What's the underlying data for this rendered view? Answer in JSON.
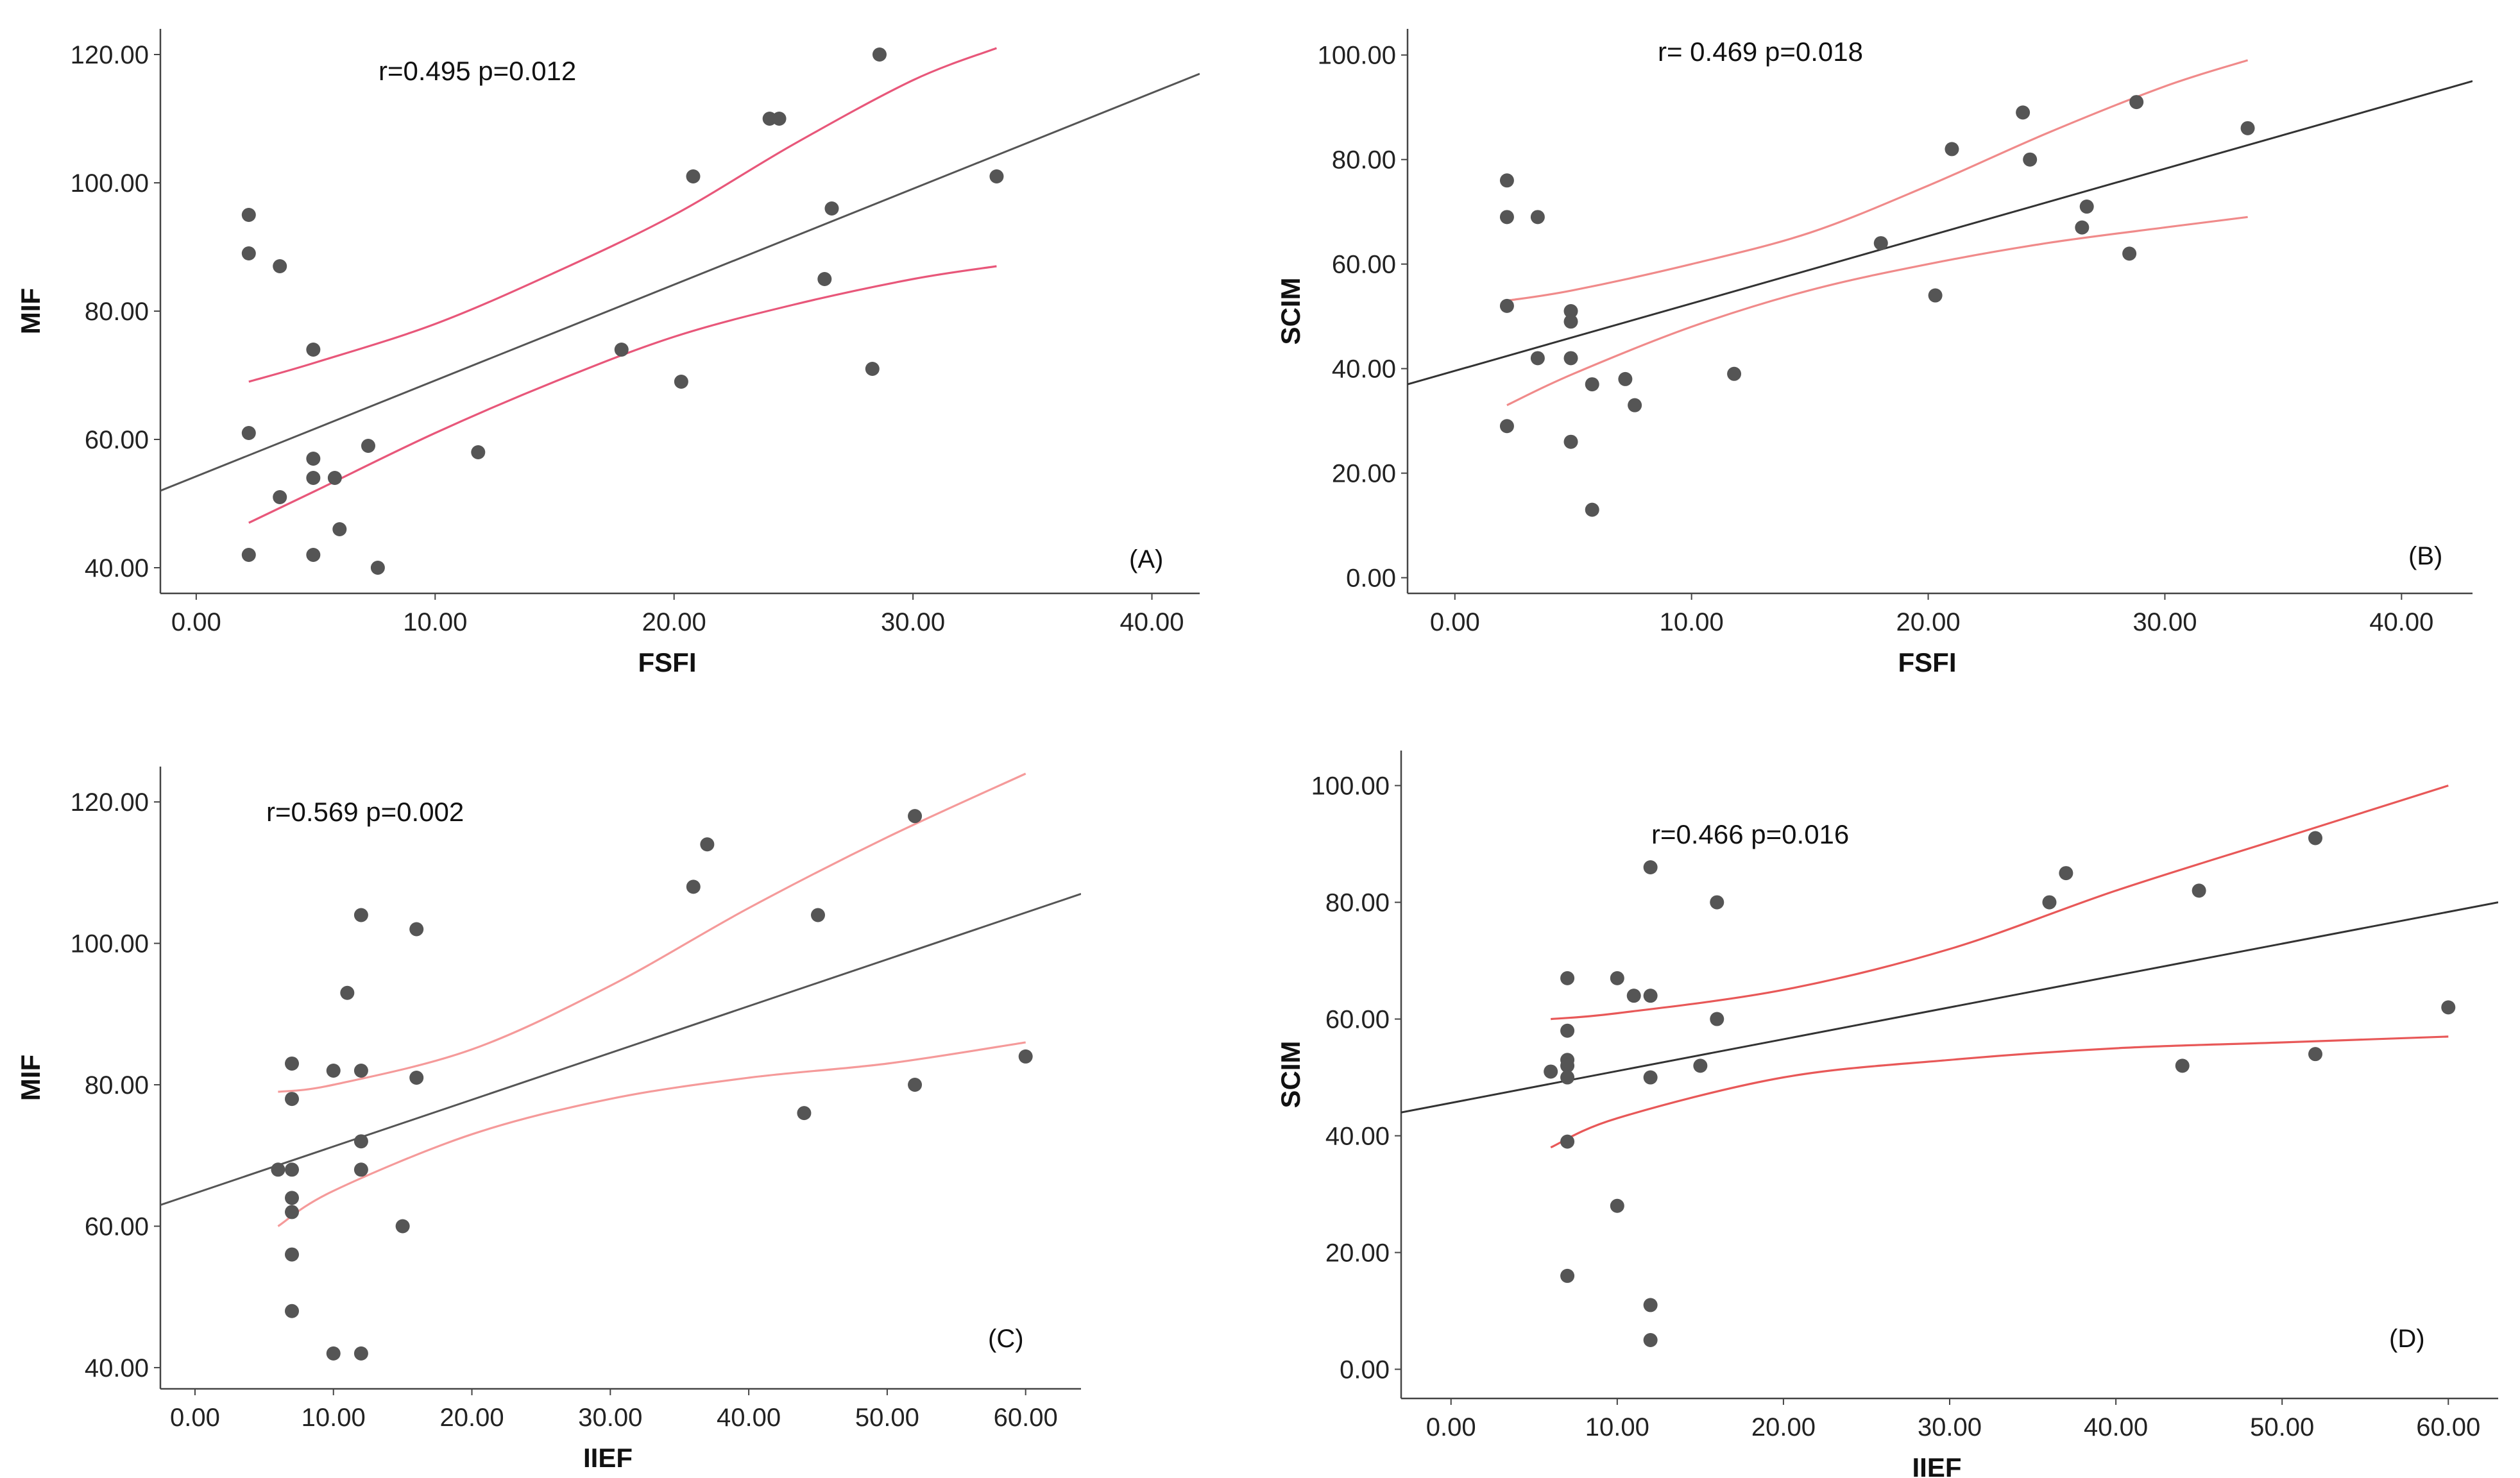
{
  "chart_data": [
    {
      "id": "A",
      "type": "scatter",
      "panel_label": "(A)",
      "annotation": "r=0.495 p=0.012",
      "xlabel": "FSFI",
      "ylabel": "MIF",
      "xlim": [
        -1.5,
        42
      ],
      "ylim": [
        36,
        124
      ],
      "xticks": [
        0,
        10,
        20,
        30,
        40
      ],
      "xtick_labels": [
        "0.00",
        "10.00",
        "20.00",
        "30.00",
        "40.00"
      ],
      "yticks": [
        40,
        60,
        80,
        100,
        120
      ],
      "ytick_labels": [
        "40.00",
        "60.00",
        "80.00",
        "100.00",
        "120.00"
      ],
      "points": [
        [
          2.2,
          95
        ],
        [
          2.2,
          89
        ],
        [
          2.2,
          61
        ],
        [
          2.2,
          42
        ],
        [
          3.5,
          87
        ],
        [
          3.5,
          51
        ],
        [
          4.9,
          74
        ],
        [
          4.9,
          57
        ],
        [
          4.9,
          54
        ],
        [
          4.9,
          42
        ],
        [
          5.8,
          54
        ],
        [
          6.0,
          46
        ],
        [
          7.2,
          59
        ],
        [
          7.6,
          40
        ],
        [
          11.8,
          58
        ],
        [
          17.8,
          74
        ],
        [
          20.3,
          69
        ],
        [
          20.8,
          101
        ],
        [
          24.0,
          110
        ],
        [
          24.4,
          110
        ],
        [
          26.3,
          85
        ],
        [
          26.6,
          96
        ],
        [
          28.3,
          71
        ],
        [
          28.6,
          120
        ],
        [
          33.5,
          101
        ]
      ],
      "fit_line": [
        [
          -1.5,
          52
        ],
        [
          42,
          117
        ]
      ],
      "ci_upper": [
        [
          2.2,
          69
        ],
        [
          5,
          72
        ],
        [
          10,
          78
        ],
        [
          15,
          86
        ],
        [
          20,
          95
        ],
        [
          25,
          106
        ],
        [
          30,
          116
        ],
        [
          33.5,
          121
        ]
      ],
      "ci_lower": [
        [
          2.2,
          47
        ],
        [
          5,
          52
        ],
        [
          10,
          61
        ],
        [
          15,
          69
        ],
        [
          20,
          76
        ],
        [
          25,
          81
        ],
        [
          30,
          85
        ],
        [
          33.5,
          87
        ]
      ],
      "colors": {
        "fit": "#555555",
        "ci": "#e8577a",
        "point": "#555555"
      }
    },
    {
      "id": "B",
      "type": "scatter",
      "panel_label": "(B)",
      "annotation": "r= 0.469  p=0.018",
      "xlabel": "FSFI",
      "ylabel": "SCIM",
      "xlim": [
        -2,
        43
      ],
      "ylim": [
        -3,
        105
      ],
      "xticks": [
        0,
        10,
        20,
        30,
        40
      ],
      "xtick_labels": [
        "0.00",
        "10.00",
        "20.00",
        "30.00",
        "40.00"
      ],
      "yticks": [
        0,
        20,
        40,
        60,
        80,
        100
      ],
      "ytick_labels": [
        "0.00",
        "20.00",
        "40.00",
        "60.00",
        "80.00",
        "100.00"
      ],
      "points": [
        [
          2.2,
          76
        ],
        [
          2.2,
          69
        ],
        [
          2.2,
          52
        ],
        [
          2.2,
          29
        ],
        [
          3.5,
          69
        ],
        [
          3.5,
          42
        ],
        [
          4.9,
          51
        ],
        [
          4.9,
          49
        ],
        [
          4.9,
          42
        ],
        [
          4.9,
          26
        ],
        [
          5.8,
          37
        ],
        [
          5.8,
          13
        ],
        [
          7.2,
          38
        ],
        [
          7.6,
          33
        ],
        [
          11.8,
          39
        ],
        [
          18.0,
          64
        ],
        [
          20.3,
          54
        ],
        [
          21.0,
          82
        ],
        [
          24.0,
          89
        ],
        [
          24.3,
          80
        ],
        [
          26.5,
          67
        ],
        [
          26.7,
          71
        ],
        [
          28.5,
          62
        ],
        [
          28.8,
          91
        ],
        [
          33.5,
          86
        ]
      ],
      "fit_line": [
        [
          -2,
          37
        ],
        [
          43,
          95
        ]
      ],
      "ci_upper": [
        [
          2.2,
          53
        ],
        [
          5,
          55
        ],
        [
          10,
          60
        ],
        [
          15,
          66
        ],
        [
          20,
          75
        ],
        [
          25,
          85
        ],
        [
          30,
          94
        ],
        [
          33.5,
          99
        ]
      ],
      "ci_lower": [
        [
          2.2,
          33
        ],
        [
          5,
          39
        ],
        [
          10,
          48
        ],
        [
          15,
          55
        ],
        [
          20,
          60
        ],
        [
          25,
          64
        ],
        [
          30,
          67
        ],
        [
          33.5,
          69
        ]
      ],
      "colors": {
        "fit": "#333333",
        "ci": "#f08a8a",
        "point": "#555555"
      }
    },
    {
      "id": "C",
      "type": "scatter",
      "panel_label": "(C)",
      "annotation": "r=0.569  p=0.002",
      "xlabel": "IIEF",
      "ylabel": "MIF",
      "xlim": [
        -2.5,
        64
      ],
      "ylim": [
        37,
        125
      ],
      "xticks": [
        0,
        10,
        20,
        30,
        40,
        50,
        60
      ],
      "xtick_labels": [
        "0.00",
        "10.00",
        "20.00",
        "30.00",
        "40.00",
        "50.00",
        "60.00"
      ],
      "yticks": [
        40,
        60,
        80,
        100,
        120
      ],
      "ytick_labels": [
        "40.00",
        "60.00",
        "80.00",
        "100.00",
        "120.00"
      ],
      "points": [
        [
          6,
          68
        ],
        [
          7,
          83
        ],
        [
          7,
          78
        ],
        [
          7,
          68
        ],
        [
          7,
          64
        ],
        [
          7,
          62
        ],
        [
          7,
          56
        ],
        [
          7,
          48
        ],
        [
          10,
          82
        ],
        [
          10,
          42
        ],
        [
          11,
          93
        ],
        [
          12,
          104
        ],
        [
          12,
          82
        ],
        [
          12,
          72
        ],
        [
          12,
          68
        ],
        [
          12,
          42
        ],
        [
          15,
          60
        ],
        [
          16,
          102
        ],
        [
          16,
          81
        ],
        [
          36,
          108
        ],
        [
          37,
          114
        ],
        [
          44,
          76
        ],
        [
          45,
          104
        ],
        [
          52,
          118
        ],
        [
          52,
          80
        ],
        [
          60,
          84
        ]
      ],
      "fit_line": [
        [
          -2.5,
          63
        ],
        [
          64,
          107
        ]
      ],
      "ci_upper": [
        [
          6,
          79
        ],
        [
          10,
          80
        ],
        [
          20,
          85
        ],
        [
          30,
          94
        ],
        [
          40,
          105
        ],
        [
          50,
          115
        ],
        [
          60,
          124
        ]
      ],
      "ci_lower": [
        [
          6,
          60
        ],
        [
          10,
          65
        ],
        [
          20,
          73
        ],
        [
          30,
          78
        ],
        [
          40,
          81
        ],
        [
          50,
          83
        ],
        [
          60,
          86
        ]
      ],
      "colors": {
        "fit": "#555555",
        "ci": "#f59a9a",
        "point": "#555555"
      }
    },
    {
      "id": "D",
      "type": "scatter",
      "panel_label": "(D)",
      "annotation": "r=0.466  p=0.016",
      "xlabel": "IIEF",
      "ylabel": "SCIM",
      "xlim": [
        -3,
        63
      ],
      "ylim": [
        -5,
        106
      ],
      "xticks": [
        0,
        10,
        20,
        30,
        40,
        50,
        60
      ],
      "xtick_labels": [
        "0.00",
        "10.00",
        "20.00",
        "30.00",
        "40.00",
        "50.00",
        "60.00"
      ],
      "yticks": [
        0,
        20,
        40,
        60,
        80,
        100
      ],
      "ytick_labels": [
        "0.00",
        "20.00",
        "40.00",
        "60.00",
        "80.00",
        "100.00"
      ],
      "points": [
        [
          6,
          51
        ],
        [
          7,
          67
        ],
        [
          7,
          58
        ],
        [
          7,
          53
        ],
        [
          7,
          52
        ],
        [
          7,
          50
        ],
        [
          7,
          39
        ],
        [
          7,
          16
        ],
        [
          10,
          67
        ],
        [
          10,
          28
        ],
        [
          11,
          64
        ],
        [
          12,
          86
        ],
        [
          12,
          64
        ],
        [
          12,
          50
        ],
        [
          12,
          11
        ],
        [
          12,
          5
        ],
        [
          15,
          52
        ],
        [
          16,
          80
        ],
        [
          16,
          60
        ],
        [
          36,
          80
        ],
        [
          37,
          85
        ],
        [
          44,
          52
        ],
        [
          45,
          82
        ],
        [
          52,
          91
        ],
        [
          52,
          54
        ],
        [
          60,
          62
        ]
      ],
      "fit_line": [
        [
          -3,
          44
        ],
        [
          63,
          80
        ]
      ],
      "ci_upper": [
        [
          6,
          60
        ],
        [
          10,
          61
        ],
        [
          20,
          65
        ],
        [
          30,
          72
        ],
        [
          40,
          82
        ],
        [
          50,
          91
        ],
        [
          60,
          100
        ]
      ],
      "ci_lower": [
        [
          6,
          38
        ],
        [
          10,
          43
        ],
        [
          20,
          50
        ],
        [
          30,
          53
        ],
        [
          40,
          55
        ],
        [
          50,
          56
        ],
        [
          60,
          57
        ]
      ],
      "colors": {
        "fit": "#333333",
        "ci": "#e85858",
        "point": "#555555"
      }
    }
  ]
}
